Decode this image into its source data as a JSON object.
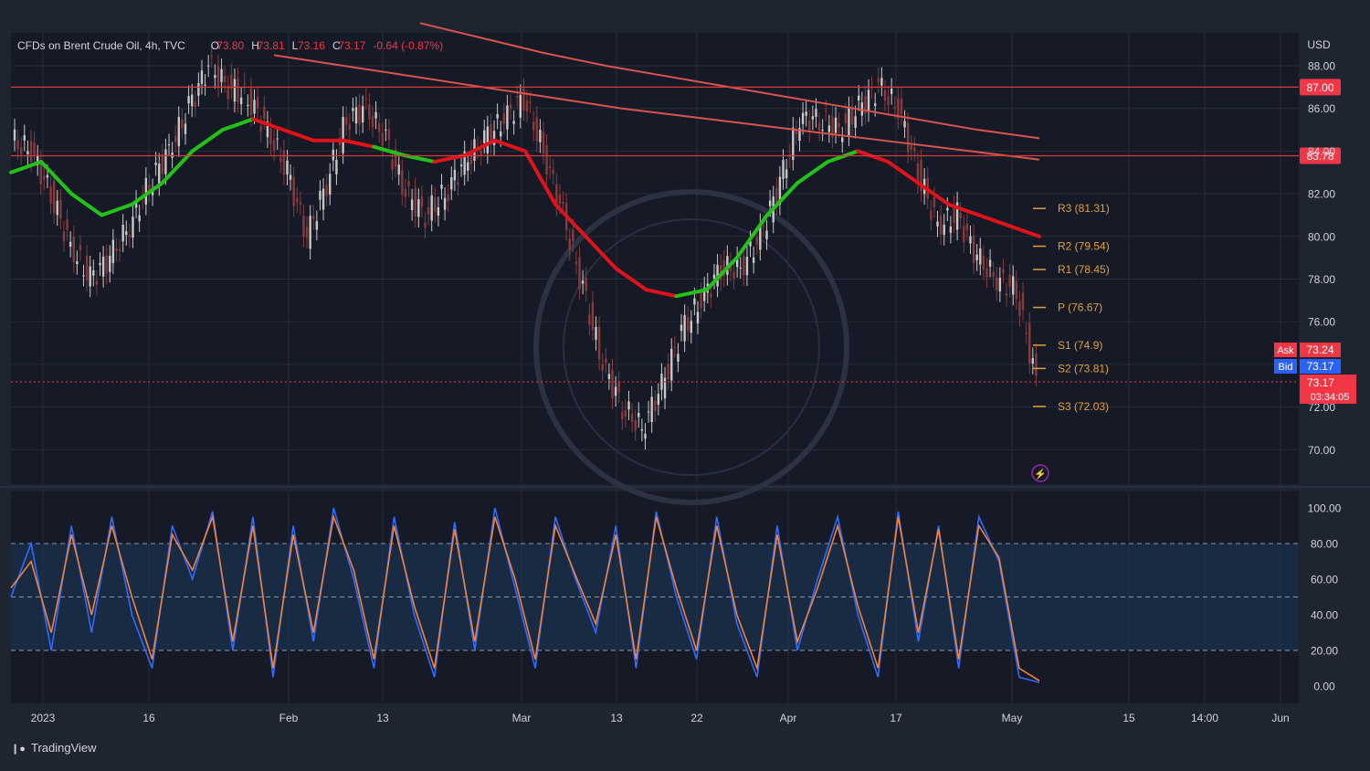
{
  "header": {
    "symbol": "CFDs on Brent Crude Oil, 4h, TVC",
    "open_label": "O",
    "open": "73.80",
    "high_label": "H",
    "high": "73.81",
    "low_label": "L",
    "low": "73.16",
    "close_label": "C",
    "close": "73.17",
    "change": "-0.64 (-0.87%)"
  },
  "currency": "USD",
  "logo": "TradingView",
  "colors": {
    "bg": "#1f2431",
    "plot_bg": "#151a26",
    "grid": "#262c3a",
    "text": "#b2b5be",
    "up": "#c8c8c8",
    "down": "#8a3a3a",
    "ema_green": "#22c21a",
    "ema_red": "#e0121a",
    "ma_slow": "#d9534f",
    "hline": "#d93a3a",
    "pivot": "#e39f3c",
    "stoch_k": "#2f6bff",
    "stoch_d": "#f2823c",
    "stoch_band": "#1d3556",
    "bid": "#2962ff",
    "ask": "#f23645"
  },
  "price_axis": {
    "ticks": [
      "88.00",
      "86.00",
      "84.00",
      "82.00",
      "80.00",
      "78.00",
      "76.00",
      "74.00",
      "72.00",
      "70.00"
    ],
    "tick_values": [
      88,
      86,
      84,
      82,
      80,
      78,
      76,
      74,
      72,
      70
    ],
    "line_87": {
      "label": "87.00",
      "value": 87.0
    },
    "line_8378": {
      "label": "83.78",
      "value": 83.78
    },
    "ask": {
      "name": "Ask",
      "value": "73.24"
    },
    "bid": {
      "name": "Bid",
      "value": "73.17"
    },
    "last": {
      "value": "73.17",
      "countdown": "03:34:05"
    }
  },
  "pivots": [
    {
      "label": "R3 (81.31)",
      "value": 81.31
    },
    {
      "label": "R2 (79.54)",
      "value": 79.54
    },
    {
      "label": "R1 (78.45)",
      "value": 78.45
    },
    {
      "label": "P (76.67)",
      "value": 76.67
    },
    {
      "label": "S1 (74.9)",
      "value": 74.9
    },
    {
      "label": "S2 (73.81)",
      "value": 73.81
    },
    {
      "label": "S3 (72.03)",
      "value": 72.03
    }
  ],
  "stoch_axis": {
    "ticks": [
      "100.00",
      "80.00",
      "60.00",
      "40.00",
      "20.00",
      "0.00"
    ],
    "tick_values": [
      100,
      80,
      60,
      40,
      20,
      0
    ],
    "band": [
      20,
      80
    ],
    "midline": 50
  },
  "time_axis": [
    "2023",
    "16",
    "Feb",
    "13",
    "Mar",
    "13",
    "22",
    "Apr",
    "17",
    "May",
    "15",
    "14:00",
    "Jun"
  ],
  "chart_data": {
    "type": "line",
    "title": "CFDs on Brent Crude Oil, 4h, TVC",
    "ylim": [
      69,
      89
    ],
    "x_ticks": [
      "2023",
      "16",
      "Feb",
      "13",
      "Mar",
      "13",
      "22",
      "Apr",
      "17",
      "May",
      "15",
      "14:00",
      "Jun"
    ],
    "series": [
      {
        "values": [
          84.5,
          84.0,
          82.0,
          79.5,
          78.0,
          79.0,
          80.5,
          82.5,
          84.0,
          86.0,
          88.0,
          87.0,
          86.5,
          85.0,
          83.0,
          80.0,
          82.5,
          85.5,
          86.0,
          84.5,
          82.0,
          81.0,
          82.0,
          83.5,
          84.5,
          85.5,
          86.5,
          84.0,
          81.0,
          77.5,
          74.0,
          72.0,
          71.0,
          73.0,
          75.5,
          77.0,
          78.5,
          78.5,
          80.0,
          82.5,
          85.5,
          85.5,
          85.0,
          86.0,
          87.0,
          86.0,
          83.0,
          80.5,
          81.0,
          79.0,
          78.0,
          77.5,
          73.2
        ]
      },
      {
        "values": [
          83.0,
          83.5,
          82.0,
          81.0,
          81.5,
          82.5,
          84.0,
          85.0,
          85.5,
          85.0,
          84.5,
          84.5,
          84.2,
          83.8,
          83.5,
          83.8,
          84.5,
          84.0,
          81.5,
          80.0,
          78.5,
          77.5,
          77.2,
          77.5,
          79.0,
          81.0,
          82.5,
          83.5,
          84.0,
          83.5,
          82.5,
          81.5,
          81.0,
          80.5,
          80.0
        ]
      },
      {
        "values": [
          90.0,
          89.3,
          88.6,
          88.0,
          87.5,
          87.0,
          86.5,
          86.0,
          85.5,
          85.0,
          84.6
        ]
      },
      {
        "values": [
          88.5,
          88.0,
          87.5,
          87.0,
          86.5,
          86.0,
          85.6,
          85.2,
          84.8,
          84.4,
          84.0,
          83.6
        ]
      }
    ],
    "stochastic": {
      "k": [
        50,
        80,
        20,
        90,
        30,
        95,
        40,
        10,
        90,
        60,
        98,
        20,
        95,
        5,
        90,
        25,
        100,
        60,
        10,
        95,
        40,
        5,
        92,
        20,
        100,
        55,
        10,
        95,
        60,
        30,
        90,
        10,
        98,
        50,
        15,
        95,
        35,
        5,
        90,
        20,
        60,
        95,
        40,
        5,
        98,
        25,
        90,
        10,
        95,
        70,
        5,
        2
      ],
      "d": [
        55,
        70,
        30,
        85,
        40,
        90,
        50,
        15,
        85,
        65,
        95,
        25,
        90,
        10,
        85,
        30,
        95,
        65,
        15,
        90,
        45,
        10,
        88,
        25,
        95,
        60,
        15,
        90,
        62,
        35,
        85,
        15,
        95,
        55,
        20,
        90,
        40,
        10,
        85,
        25,
        55,
        90,
        45,
        10,
        95,
        30,
        88,
        15,
        90,
        72,
        10,
        3
      ]
    }
  }
}
